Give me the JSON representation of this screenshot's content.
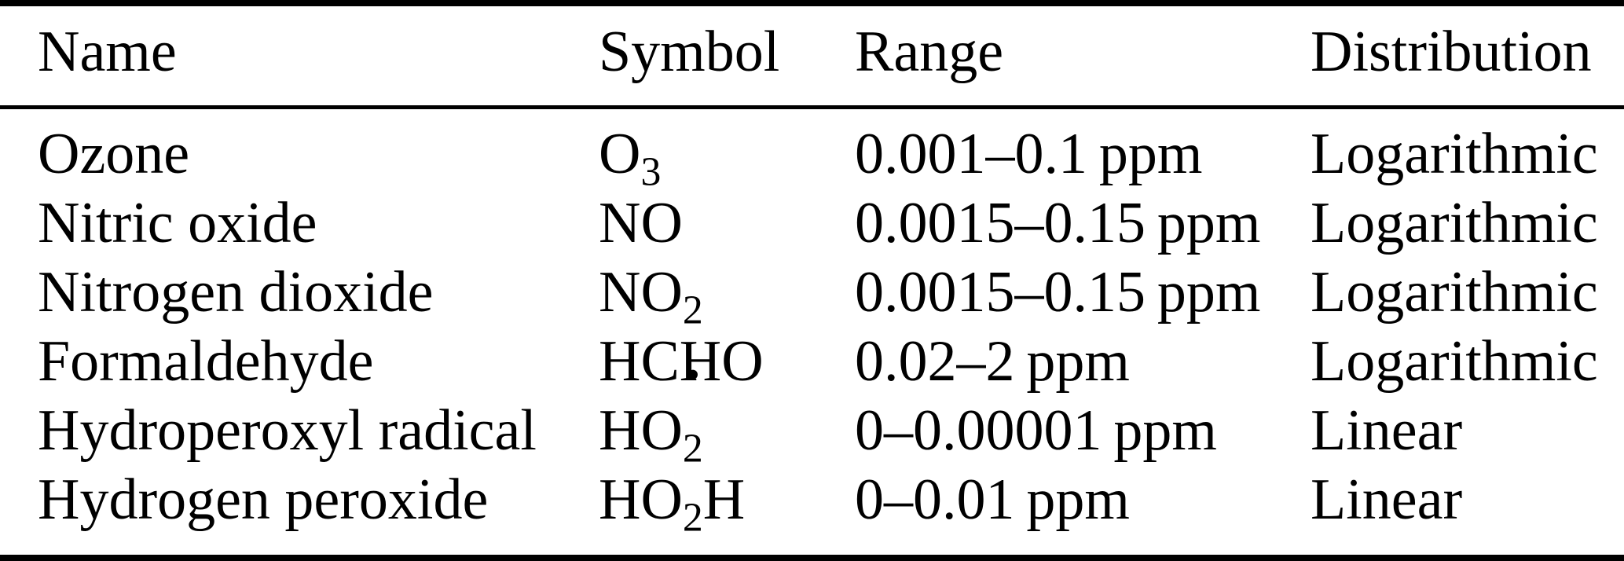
{
  "page": {
    "background_color": "#ffffff",
    "text_color": "#000000",
    "rule_color": "#000000"
  },
  "table": {
    "columns": [
      {
        "id": "name",
        "label": "Name"
      },
      {
        "id": "symbol",
        "label": "Symbol"
      },
      {
        "id": "range",
        "label": "Range"
      },
      {
        "id": "distribution",
        "label": "Distribution"
      }
    ],
    "rows": [
      {
        "name": "Ozone",
        "symbol": [
          {
            "text": "O"
          },
          {
            "sub": "3"
          }
        ],
        "symbol_plain": "O3",
        "range": "0.001–0.1 ppm",
        "distribution": "Logarithmic"
      },
      {
        "name": "Nitric oxide",
        "symbol": [
          {
            "text": "NO"
          }
        ],
        "symbol_plain": "NO",
        "range": "0.0015–0.15 ppm",
        "distribution": "Logarithmic"
      },
      {
        "name": "Nitrogen dioxide",
        "symbol": [
          {
            "text": "NO"
          },
          {
            "sub": "2"
          }
        ],
        "symbol_plain": "NO2",
        "range": "0.0015–0.15 ppm",
        "distribution": "Logarithmic"
      },
      {
        "name": "Formaldehyde",
        "symbol": [
          {
            "text": "HCHO"
          }
        ],
        "symbol_plain": "HCHO",
        "range": "0.02–2 ppm",
        "distribution": "Logarithmic"
      },
      {
        "name": "Hydroperoxyl radical",
        "symbol": [
          {
            "text": "HO"
          },
          {
            "stack": {
              "sup": "•",
              "sub": "2"
            }
          }
        ],
        "symbol_plain": "HO2•",
        "range": "0–0.00001 ppm",
        "distribution": "Linear"
      },
      {
        "name": "Hydrogen peroxide",
        "symbol": [
          {
            "text": "HO"
          },
          {
            "sub": "2"
          },
          {
            "text": "H"
          }
        ],
        "symbol_plain": "HO2H",
        "range": "0–0.01 ppm",
        "distribution": "Linear"
      }
    ]
  }
}
